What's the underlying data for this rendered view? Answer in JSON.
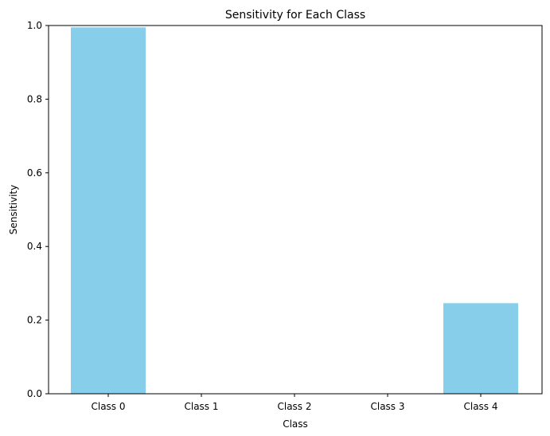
{
  "chart_data": {
    "type": "bar",
    "title": "Sensitivity for Each Class",
    "xlabel": "Class",
    "ylabel": "Sensitivity",
    "categories": [
      "Class 0",
      "Class 1",
      "Class 2",
      "Class 3",
      "Class 4"
    ],
    "values": [
      0.995,
      0.0,
      0.0,
      0.0,
      0.246
    ],
    "ylim": [
      0,
      1
    ],
    "yticks": [
      0.0,
      0.2,
      0.4,
      0.6,
      0.8,
      1.0
    ],
    "ytick_labels": [
      "0.0",
      "0.2",
      "0.4",
      "0.6",
      "0.8",
      "1.0"
    ],
    "grid": false,
    "bar_color": "#87ceeb"
  }
}
